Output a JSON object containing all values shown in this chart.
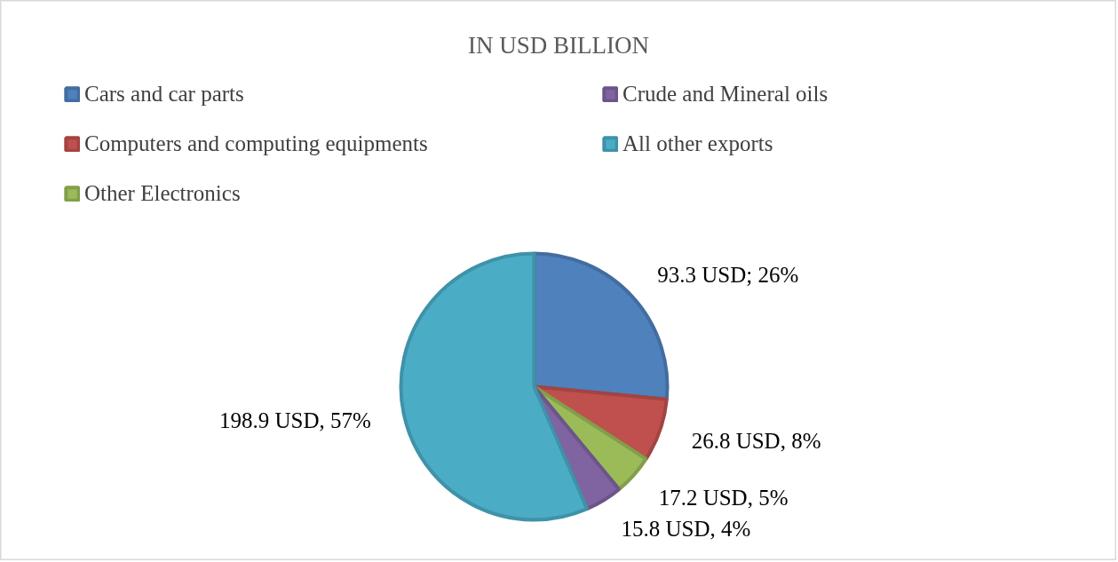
{
  "chart_data": {
    "type": "pie",
    "title": "IN USD BILLION",
    "categories": [
      "Cars and car parts",
      "Computers and computing equipments",
      "Other Electronics",
      "Crude and Mineral oils",
      "All other exports"
    ],
    "values": [
      93.3,
      26.8,
      17.2,
      15.8,
      198.9
    ],
    "colors": [
      "#4f81bd",
      "#c0504d",
      "#9bbb59",
      "#8064a2",
      "#4bacc6"
    ],
    "value_labels": [
      "93.3 USD; 26%",
      "26.8 USD, 8%",
      "17.2 USD, 5%",
      "15.8 USD, 4%",
      "198.9 USD, 57%"
    ],
    "legend": "top"
  }
}
